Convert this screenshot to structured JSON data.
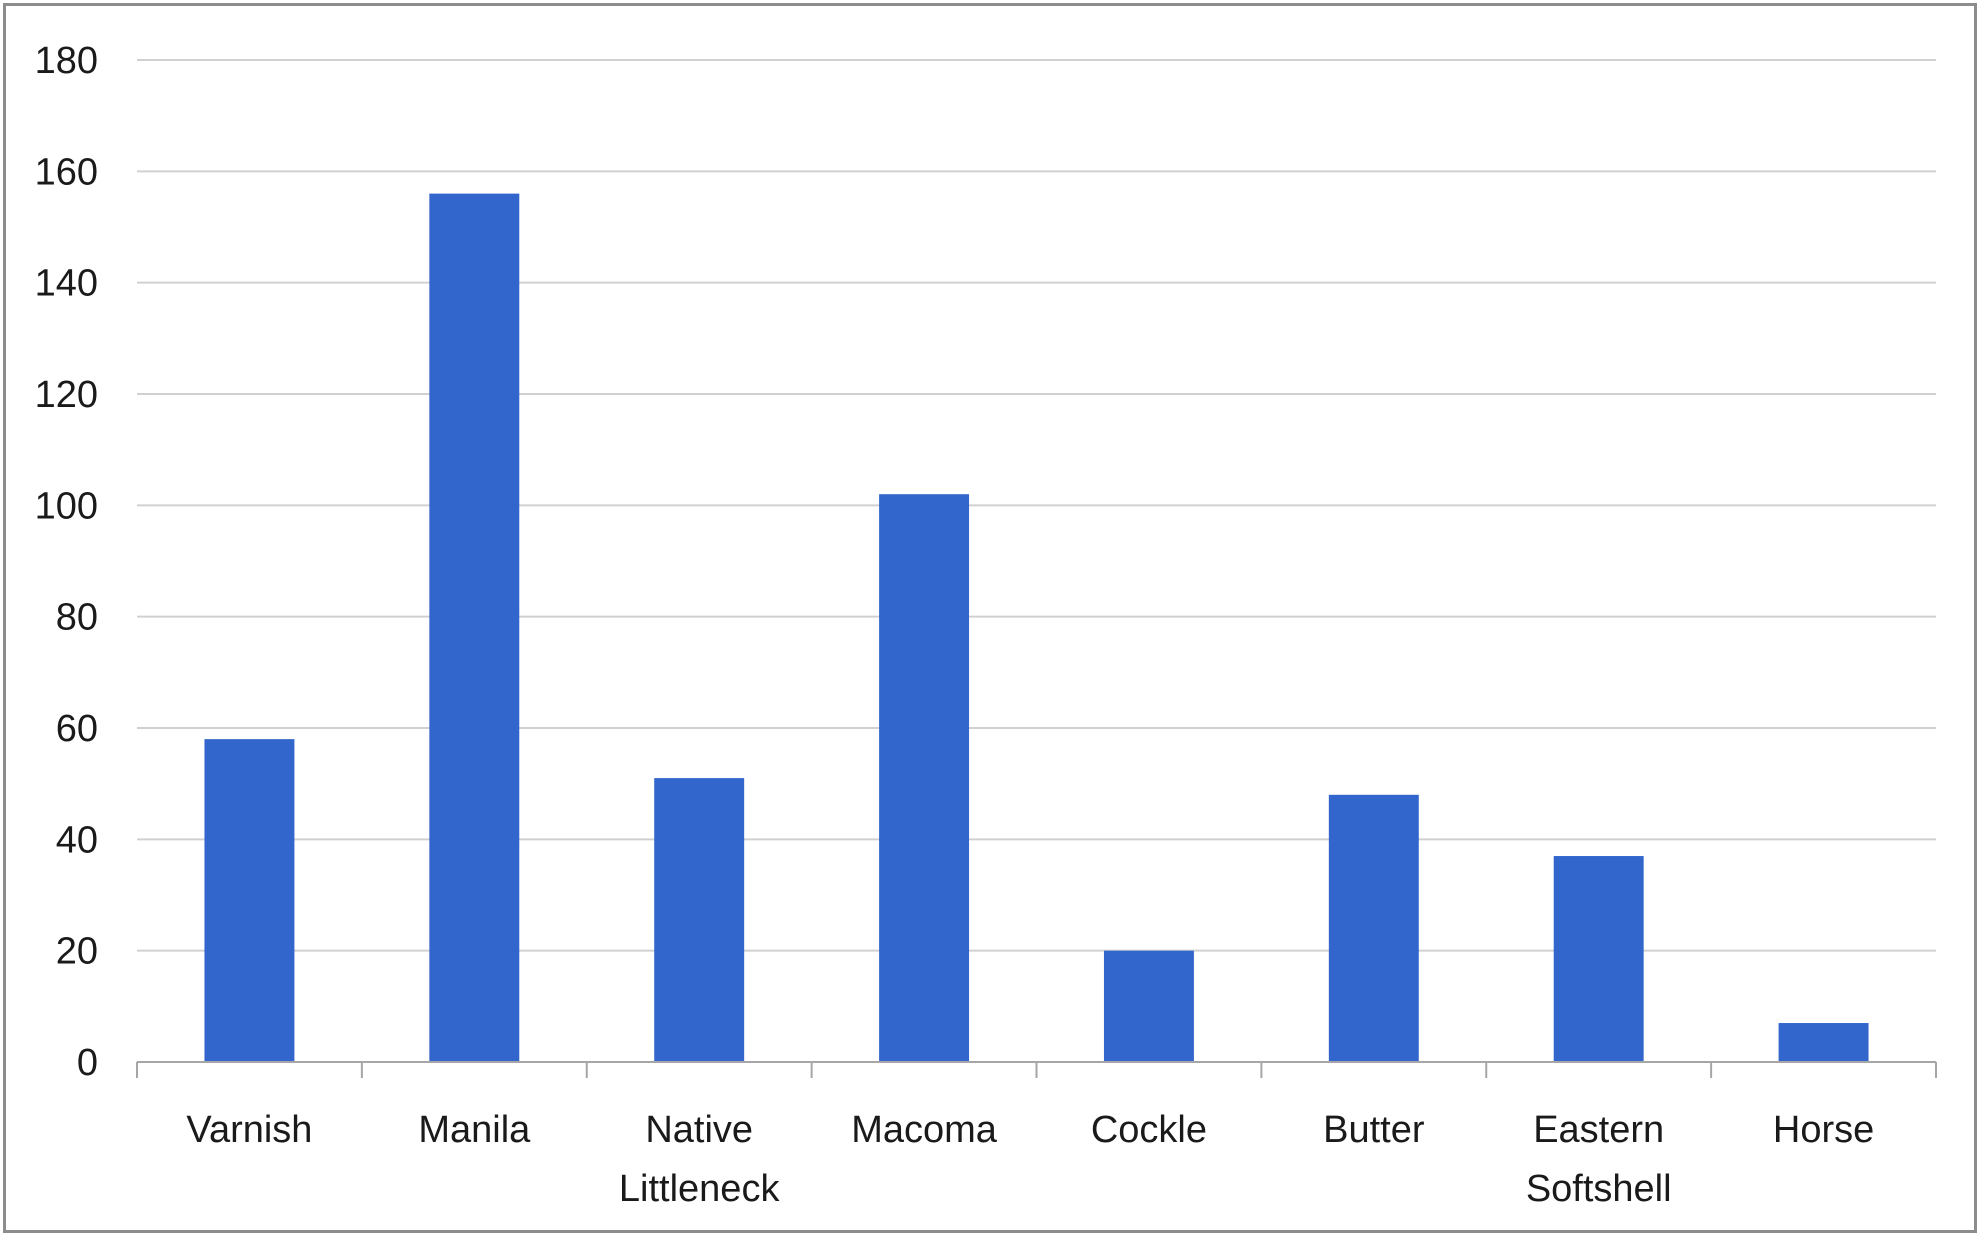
{
  "chart_data": {
    "type": "bar",
    "categories": [
      "Varnish",
      "Manila",
      "Native Littleneck",
      "Macoma",
      "Cockle",
      "Butter",
      "Eastern Softshell",
      "Horse"
    ],
    "category_label_lines": [
      [
        "Varnish"
      ],
      [
        "Manila"
      ],
      [
        "Native",
        "Littleneck"
      ],
      [
        "Macoma"
      ],
      [
        "Cockle"
      ],
      [
        "Butter"
      ],
      [
        "Eastern",
        "Softshell"
      ],
      [
        "Horse"
      ]
    ],
    "values": [
      58,
      156,
      51,
      102,
      20,
      48,
      37,
      7
    ],
    "ylim": [
      0,
      180
    ],
    "yticks": [
      0,
      20,
      40,
      60,
      80,
      100,
      120,
      140,
      160,
      180
    ],
    "title": "",
    "xlabel": "",
    "ylabel": "",
    "grid": true,
    "legend": "none",
    "bar_color": "#3366CC",
    "grid_color": "#d0d0d0",
    "axis_color": "#a6a6a6"
  }
}
